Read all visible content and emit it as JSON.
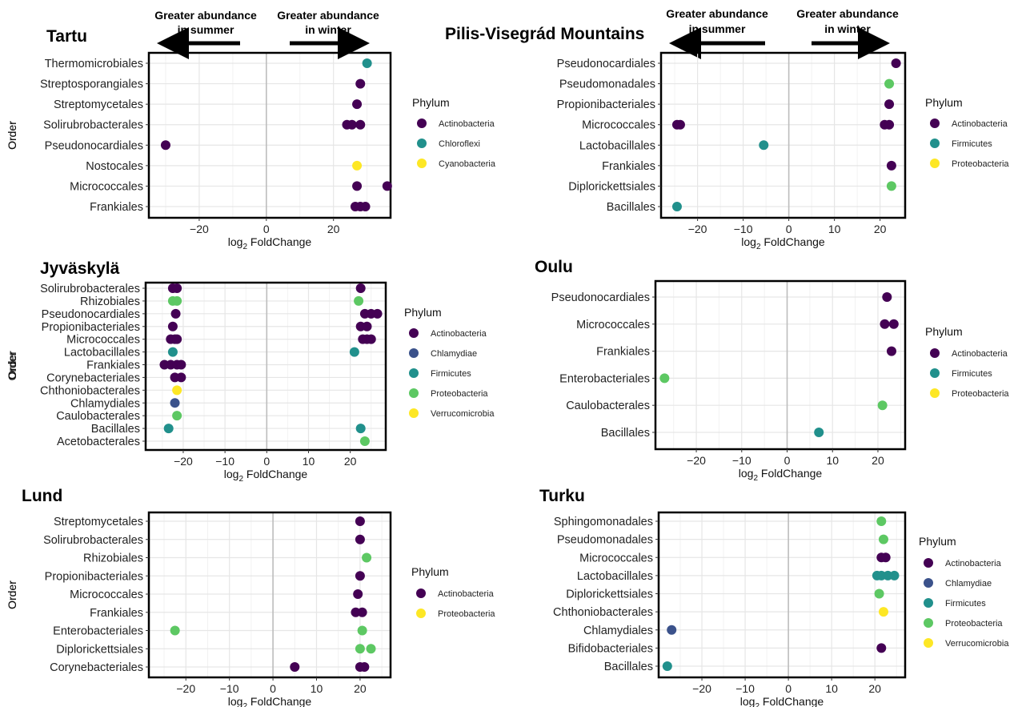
{
  "header": {
    "left_arrow_label": [
      "Greater abundance",
      "in summer"
    ],
    "right_arrow_label": [
      "Greater abundance",
      "in winter"
    ]
  },
  "phylum_colors": {
    "Actinobacteria": "#440154",
    "Chlamydiae": "#3B528B",
    "Chloroflexi": "#21908C",
    "Firmicutes": "#21908C",
    "Proteobacteria": "#5DC863",
    "Verrucomicrobia": "#FDE725",
    "Cyanobacteria": "#FDE725"
  },
  "chart_data": [
    {
      "type": "scatter",
      "title": "Tartu",
      "xlabel": "log2 FoldChange",
      "ylabel": "Order",
      "xlim": [
        -35,
        37
      ],
      "xticks": [
        -20,
        0,
        20
      ],
      "grid": true,
      "legend_title": "Phylum",
      "legend_position": "right",
      "legend": [
        {
          "name": "Actinobacteria",
          "color": "#440154"
        },
        {
          "name": "Chloroflexi",
          "color": "#21908C"
        },
        {
          "name": "Cyanobacteria",
          "color": "#FDE725"
        }
      ],
      "categories": [
        "Thermomicrobiales",
        "Streptosporangiales",
        "Streptomycetales",
        "Solirubrobacterales",
        "Pseudonocardiales",
        "Nostocales",
        "Micrococcales",
        "Frankiales"
      ],
      "points": [
        {
          "order": "Thermomicrobiales",
          "x": 30,
          "phylum": "Chloroflexi"
        },
        {
          "order": "Streptosporangiales",
          "x": 28,
          "phylum": "Actinobacteria"
        },
        {
          "order": "Streptomycetales",
          "x": 27,
          "phylum": "Actinobacteria"
        },
        {
          "order": "Solirubrobacterales",
          "x": 24,
          "phylum": "Actinobacteria"
        },
        {
          "order": "Solirubrobacterales",
          "x": 25.5,
          "phylum": "Actinobacteria"
        },
        {
          "order": "Solirubrobacterales",
          "x": 28,
          "phylum": "Actinobacteria"
        },
        {
          "order": "Pseudonocardiales",
          "x": -30,
          "phylum": "Actinobacteria"
        },
        {
          "order": "Nostocales",
          "x": 27,
          "phylum": "Cyanobacteria"
        },
        {
          "order": "Micrococcales",
          "x": 27,
          "phylum": "Actinobacteria"
        },
        {
          "order": "Micrococcales",
          "x": 36,
          "phylum": "Actinobacteria"
        },
        {
          "order": "Frankiales",
          "x": 26.5,
          "phylum": "Actinobacteria"
        },
        {
          "order": "Frankiales",
          "x": 28,
          "phylum": "Actinobacteria"
        },
        {
          "order": "Frankiales",
          "x": 29.5,
          "phylum": "Actinobacteria"
        }
      ]
    },
    {
      "type": "scatter",
      "title": "Pilis-Visegrád Mountains",
      "xlabel": "log2 FoldChange",
      "ylabel": "Order",
      "xlim": [
        -28,
        25.5
      ],
      "xticks": [
        -20,
        -10,
        0,
        10,
        20
      ],
      "grid": true,
      "legend_title": "Phylum",
      "legend_position": "right",
      "legend": [
        {
          "name": "Actinobacteria",
          "color": "#440154"
        },
        {
          "name": "Firmicutes",
          "color": "#21908C"
        },
        {
          "name": "Proteobacteria",
          "color": "#FDE725"
        }
      ],
      "categories": [
        "Pseudonocardiales",
        "Pseudomonadales",
        "Propionibacteriales",
        "Micrococcales",
        "Lactobacillales",
        "Frankiales",
        "Diplorickettsiales",
        "Bacillales"
      ],
      "points": [
        {
          "order": "Pseudonocardiales",
          "x": 23.5,
          "phylum": "Actinobacteria"
        },
        {
          "order": "Pseudomonadales",
          "x": 22,
          "phylum": "Proteobacteria"
        },
        {
          "order": "Propionibacteriales",
          "x": 22,
          "phylum": "Actinobacteria"
        },
        {
          "order": "Micrococcales",
          "x": -24.5,
          "phylum": "Actinobacteria"
        },
        {
          "order": "Micrococcales",
          "x": -23.8,
          "phylum": "Actinobacteria"
        },
        {
          "order": "Micrococcales",
          "x": 21,
          "phylum": "Actinobacteria"
        },
        {
          "order": "Micrococcales",
          "x": 22,
          "phylum": "Actinobacteria"
        },
        {
          "order": "Lactobacillales",
          "x": -5.5,
          "phylum": "Firmicutes"
        },
        {
          "order": "Frankiales",
          "x": 22.5,
          "phylum": "Actinobacteria"
        },
        {
          "order": "Diplorickettsiales",
          "x": 22.5,
          "phylum": "Proteobacteria"
        },
        {
          "order": "Bacillales",
          "x": -24.5,
          "phylum": "Firmicutes"
        }
      ]
    },
    {
      "type": "scatter",
      "title": "Jyväskylä",
      "xlabel": "log2 FoldChange",
      "ylabel": "Order",
      "xlim": [
        -29,
        28.5
      ],
      "xticks": [
        -20,
        -10,
        0,
        10,
        20
      ],
      "grid": true,
      "legend_title": "Phylum",
      "legend_position": "right",
      "legend": [
        {
          "name": "Actinobacteria",
          "color": "#440154"
        },
        {
          "name": "Chlamydiae",
          "color": "#3B528B"
        },
        {
          "name": "Firmicutes",
          "color": "#21908C"
        },
        {
          "name": "Proteobacteria",
          "color": "#5DC863"
        },
        {
          "name": "Verrucomicrobia",
          "color": "#FDE725"
        }
      ],
      "categories": [
        "Solirubrobacterales",
        "Rhizobiales",
        "Pseudonocardiales",
        "Propionibacteriales",
        "Micrococcales",
        "Lactobacillales",
        "Frankiales",
        "Corynebacteriales",
        "Chthoniobacterales",
        "Chlamydiales",
        "Caulobacterales",
        "Bacillales",
        "Acetobacterales"
      ],
      "points": [
        {
          "order": "Solirubrobacterales",
          "x": -22.5,
          "phylum": "Actinobacteria"
        },
        {
          "order": "Solirubrobacterales",
          "x": -21.5,
          "phylum": "Actinobacteria"
        },
        {
          "order": "Solirubrobacterales",
          "x": 22.5,
          "phylum": "Actinobacteria"
        },
        {
          "order": "Rhizobiales",
          "x": -22.5,
          "phylum": "Proteobacteria"
        },
        {
          "order": "Rhizobiales",
          "x": -21.5,
          "phylum": "Proteobacteria"
        },
        {
          "order": "Rhizobiales",
          "x": 22,
          "phylum": "Proteobacteria"
        },
        {
          "order": "Pseudonocardiales",
          "x": -21.8,
          "phylum": "Actinobacteria"
        },
        {
          "order": "Pseudonocardiales",
          "x": 23.5,
          "phylum": "Actinobacteria"
        },
        {
          "order": "Pseudonocardiales",
          "x": 25,
          "phylum": "Actinobacteria"
        },
        {
          "order": "Pseudonocardiales",
          "x": 26.5,
          "phylum": "Actinobacteria"
        },
        {
          "order": "Propionibacteriales",
          "x": -22.5,
          "phylum": "Actinobacteria"
        },
        {
          "order": "Propionibacteriales",
          "x": 22.5,
          "phylum": "Actinobacteria"
        },
        {
          "order": "Propionibacteriales",
          "x": 24,
          "phylum": "Actinobacteria"
        },
        {
          "order": "Micrococcales",
          "x": -23,
          "phylum": "Actinobacteria"
        },
        {
          "order": "Micrococcales",
          "x": -22,
          "phylum": "Actinobacteria"
        },
        {
          "order": "Micrococcales",
          "x": -21.5,
          "phylum": "Actinobacteria"
        },
        {
          "order": "Micrococcales",
          "x": 23,
          "phylum": "Actinobacteria"
        },
        {
          "order": "Micrococcales",
          "x": 24,
          "phylum": "Actinobacteria"
        },
        {
          "order": "Micrococcales",
          "x": 25,
          "phylum": "Actinobacteria"
        },
        {
          "order": "Lactobacillales",
          "x": -22.5,
          "phylum": "Firmicutes"
        },
        {
          "order": "Lactobacillales",
          "x": 21,
          "phylum": "Firmicutes"
        },
        {
          "order": "Frankiales",
          "x": -24.5,
          "phylum": "Actinobacteria"
        },
        {
          "order": "Frankiales",
          "x": -23,
          "phylum": "Actinobacteria"
        },
        {
          "order": "Frankiales",
          "x": -21.5,
          "phylum": "Actinobacteria"
        },
        {
          "order": "Frankiales",
          "x": -20.5,
          "phylum": "Actinobacteria"
        },
        {
          "order": "Corynebacteriales",
          "x": -22,
          "phylum": "Actinobacteria"
        },
        {
          "order": "Corynebacteriales",
          "x": -20.5,
          "phylum": "Actinobacteria"
        },
        {
          "order": "Chthoniobacterales",
          "x": -21.5,
          "phylum": "Verrucomicrobia"
        },
        {
          "order": "Chlamydiales",
          "x": -22,
          "phylum": "Chlamydiae"
        },
        {
          "order": "Caulobacterales",
          "x": -21.5,
          "phylum": "Proteobacteria"
        },
        {
          "order": "Bacillales",
          "x": -23.5,
          "phylum": "Firmicutes"
        },
        {
          "order": "Bacillales",
          "x": 22.5,
          "phylum": "Firmicutes"
        },
        {
          "order": "Acetobacterales",
          "x": 23.5,
          "phylum": "Proteobacteria"
        }
      ]
    },
    {
      "type": "scatter",
      "title": "Oulu",
      "xlabel": "log2 FoldChange",
      "ylabel": "Order",
      "xlim": [
        -29,
        26
      ],
      "xticks": [
        -20,
        -10,
        0,
        10,
        20
      ],
      "grid": true,
      "legend_title": "Phylum",
      "legend_position": "right",
      "legend": [
        {
          "name": "Actinobacteria",
          "color": "#440154"
        },
        {
          "name": "Firmicutes",
          "color": "#21908C"
        },
        {
          "name": "Proteobacteria",
          "color": "#FDE725"
        }
      ],
      "categories": [
        "Pseudonocardiales",
        "Micrococcales",
        "Frankiales",
        "Enterobacteriales",
        "Caulobacterales",
        "Bacillales"
      ],
      "points": [
        {
          "order": "Pseudonocardiales",
          "x": 22,
          "phylum": "Actinobacteria"
        },
        {
          "order": "Micrococcales",
          "x": 21.5,
          "phylum": "Actinobacteria"
        },
        {
          "order": "Micrococcales",
          "x": 23.5,
          "phylum": "Actinobacteria"
        },
        {
          "order": "Frankiales",
          "x": 23,
          "phylum": "Actinobacteria"
        },
        {
          "order": "Enterobacteriales",
          "x": -27,
          "phylum": "Proteobacteria"
        },
        {
          "order": "Caulobacterales",
          "x": 21,
          "phylum": "Proteobacteria"
        },
        {
          "order": "Bacillales",
          "x": 7,
          "phylum": "Firmicutes"
        }
      ]
    },
    {
      "type": "scatter",
      "title": "Lund",
      "xlabel": "log2 FoldChange",
      "ylabel": "Order",
      "xlim": [
        -28.5,
        27
      ],
      "xticks": [
        -20,
        -10,
        0,
        10,
        20
      ],
      "grid": true,
      "legend_title": "Phylum",
      "legend_position": "right",
      "legend": [
        {
          "name": "Actinobacteria",
          "color": "#440154"
        },
        {
          "name": "Proteobacteria",
          "color": "#FDE725"
        }
      ],
      "categories": [
        "Streptomycetales",
        "Solirubrobacterales",
        "Rhizobiales",
        "Propionibacteriales",
        "Micrococcales",
        "Frankiales",
        "Enterobacteriales",
        "Diplorickettsiales",
        "Corynebacteriales"
      ],
      "points": [
        {
          "order": "Streptomycetales",
          "x": 20,
          "phylum": "Actinobacteria"
        },
        {
          "order": "Solirubrobacterales",
          "x": 20,
          "phylum": "Actinobacteria"
        },
        {
          "order": "Rhizobiales",
          "x": 21.5,
          "phylum": "Proteobacteria"
        },
        {
          "order": "Propionibacteriales",
          "x": 20,
          "phylum": "Actinobacteria"
        },
        {
          "order": "Micrococcales",
          "x": 19.5,
          "phylum": "Actinobacteria"
        },
        {
          "order": "Frankiales",
          "x": 19,
          "phylum": "Actinobacteria"
        },
        {
          "order": "Frankiales",
          "x": 20.5,
          "phylum": "Actinobacteria"
        },
        {
          "order": "Enterobacteriales",
          "x": -22.5,
          "phylum": "Proteobacteria"
        },
        {
          "order": "Enterobacteriales",
          "x": 20.5,
          "phylum": "Proteobacteria"
        },
        {
          "order": "Diplorickettsiales",
          "x": 20,
          "phylum": "Proteobacteria"
        },
        {
          "order": "Diplorickettsiales",
          "x": 22.5,
          "phylum": "Proteobacteria"
        },
        {
          "order": "Corynebacteriales",
          "x": 5,
          "phylum": "Actinobacteria"
        },
        {
          "order": "Corynebacteriales",
          "x": 20,
          "phylum": "Actinobacteria"
        },
        {
          "order": "Corynebacteriales",
          "x": 21,
          "phylum": "Actinobacteria"
        }
      ]
    },
    {
      "type": "scatter",
      "title": "Turku",
      "xlabel": "log2 FoldChange",
      "ylabel": "Order",
      "xlim": [
        -30,
        27
      ],
      "xticks": [
        -20,
        -10,
        0,
        10,
        20
      ],
      "grid": true,
      "legend_title": "Phylum",
      "legend_position": "right",
      "legend": [
        {
          "name": "Actinobacteria",
          "color": "#440154"
        },
        {
          "name": "Chlamydiae",
          "color": "#3B528B"
        },
        {
          "name": "Firmicutes",
          "color": "#21908C"
        },
        {
          "name": "Proteobacteria",
          "color": "#5DC863"
        },
        {
          "name": "Verrucomicrobia",
          "color": "#FDE725"
        }
      ],
      "categories": [
        "Sphingomonadales",
        "Pseudomonadales",
        "Micrococcales",
        "Lactobacillales",
        "Diplorickettsiales",
        "Chthoniobacterales",
        "Chlamydiales",
        "Bifidobacteriales",
        "Bacillales"
      ],
      "points": [
        {
          "order": "Sphingomonadales",
          "x": 21.5,
          "phylum": "Proteobacteria"
        },
        {
          "order": "Pseudomonadales",
          "x": 22,
          "phylum": "Proteobacteria"
        },
        {
          "order": "Micrococcales",
          "x": 21.5,
          "phylum": "Actinobacteria"
        },
        {
          "order": "Micrococcales",
          "x": 22.5,
          "phylum": "Actinobacteria"
        },
        {
          "order": "Lactobacillales",
          "x": 20.5,
          "phylum": "Firmicutes"
        },
        {
          "order": "Lactobacillales",
          "x": 21.5,
          "phylum": "Firmicutes"
        },
        {
          "order": "Lactobacillales",
          "x": 23,
          "phylum": "Firmicutes"
        },
        {
          "order": "Lactobacillales",
          "x": 24.5,
          "phylum": "Firmicutes"
        },
        {
          "order": "Diplorickettsiales",
          "x": 21,
          "phylum": "Proteobacteria"
        },
        {
          "order": "Chthoniobacterales",
          "x": 22,
          "phylum": "Verrucomicrobia"
        },
        {
          "order": "Chlamydiales",
          "x": -27,
          "phylum": "Chlamydiae"
        },
        {
          "order": "Bifidobacteriales",
          "x": 21.5,
          "phylum": "Actinobacteria"
        },
        {
          "order": "Bacillales",
          "x": -28,
          "phylum": "Firmicutes"
        }
      ]
    }
  ]
}
